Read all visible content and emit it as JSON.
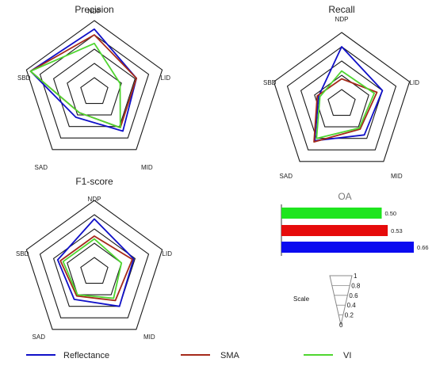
{
  "colors": {
    "Reflectance": "#1010c8",
    "SMA": "#a52a1a",
    "VI": "#4fd630",
    "grid": "#1a1a1a"
  },
  "chart_data": [
    {
      "type": "radar",
      "id": "precision",
      "title": "Precision",
      "axes": [
        "NDP",
        "LID",
        "MID",
        "SAD",
        "SBD"
      ],
      "rlim": [
        0,
        1
      ],
      "ring_levels": [
        0.2,
        0.4,
        0.6,
        0.8,
        1.0
      ],
      "series": [
        {
          "name": "Reflectance",
          "values": [
            0.88,
            0.62,
            0.68,
            0.44,
            0.94
          ]
        },
        {
          "name": "SMA",
          "values": [
            0.8,
            0.62,
            0.62,
            0.36,
            0.94
          ]
        },
        {
          "name": "VI",
          "values": [
            0.68,
            0.38,
            0.62,
            0.36,
            0.94
          ]
        }
      ]
    },
    {
      "type": "radar",
      "id": "recall",
      "title": "Recall",
      "axes": [
        "NDP",
        "LID",
        "MID",
        "SAD",
        "SBD"
      ],
      "rlim": [
        0,
        1
      ],
      "ring_levels": [
        0.2,
        0.4,
        0.6,
        0.8,
        1.0
      ],
      "series": [
        {
          "name": "Reflectance",
          "values": [
            0.8,
            0.6,
            0.54,
            0.64,
            0.34
          ]
        },
        {
          "name": "SMA",
          "values": [
            0.35,
            0.52,
            0.44,
            0.66,
            0.36
          ]
        },
        {
          "name": "VI",
          "values": [
            0.46,
            0.48,
            0.42,
            0.6,
            0.32
          ]
        }
      ]
    },
    {
      "type": "radar",
      "id": "f1",
      "title": "F1-score",
      "axes": [
        "NDP",
        "LID",
        "MID",
        "SAD",
        "SBD"
      ],
      "rlim": [
        0,
        1
      ],
      "ring_levels": [
        0.2,
        0.4,
        0.6,
        0.8,
        1.0
      ],
      "series": [
        {
          "name": "Reflectance",
          "values": [
            0.74,
            0.58,
            0.6,
            0.48,
            0.54
          ]
        },
        {
          "name": "SMA",
          "values": [
            0.5,
            0.56,
            0.5,
            0.42,
            0.5
          ]
        },
        {
          "name": "VI",
          "values": [
            0.46,
            0.4,
            0.46,
            0.4,
            0.46
          ]
        }
      ]
    },
    {
      "type": "bar",
      "id": "oa",
      "orientation": "horizontal",
      "title": "OA",
      "categories": [
        "VI",
        "SMA",
        "Reflectance"
      ],
      "values": [
        0.5,
        0.53,
        0.66
      ],
      "labels": [
        "0.50",
        "0.53",
        "0.66"
      ],
      "bar_colors": [
        "#1ee51e",
        "#e60b0b",
        "#0b0bf0"
      ],
      "xlim": [
        0,
        0.66
      ]
    }
  ],
  "scale": {
    "title": "Scale",
    "ticks": [
      "1",
      "0.8",
      "0.6",
      "0.4",
      "0.2",
      "0"
    ]
  },
  "legend": {
    "position": "bottom",
    "items": [
      "Reflectance",
      "SMA",
      "VI"
    ]
  }
}
